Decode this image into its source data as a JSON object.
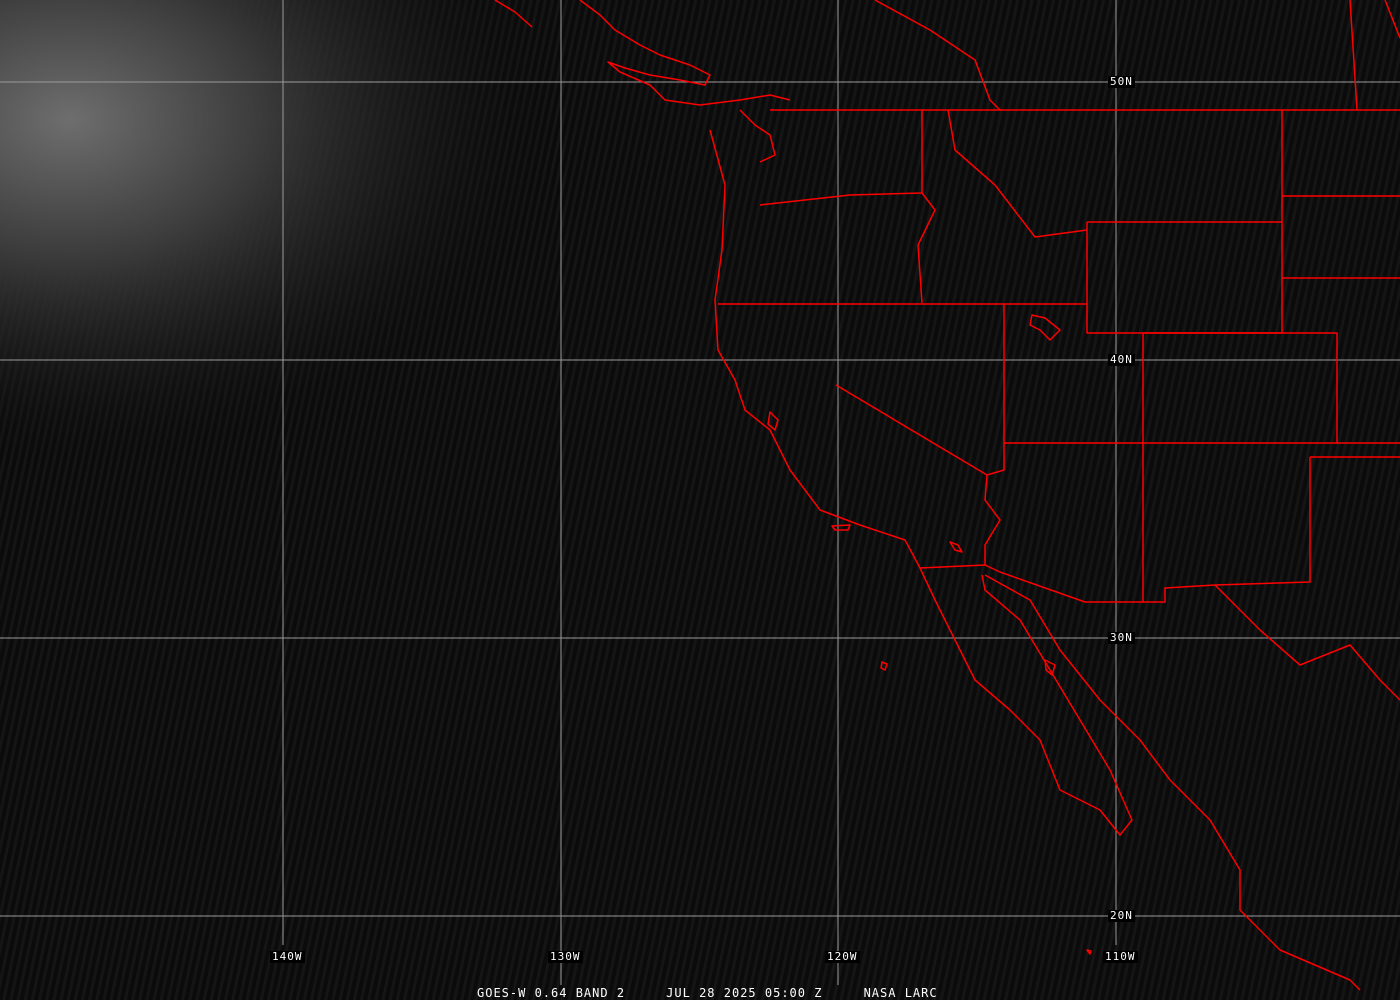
{
  "image": {
    "satellite": "GOES-W",
    "caption_left": "GOES-W 0.64 BAND 2",
    "caption_time": "JUL 28 2025 05:00 Z",
    "caption_right": "NASA LARC"
  },
  "grid": {
    "longitude_labels": [
      "140W",
      "130W",
      "120W",
      "110W"
    ],
    "latitude_labels": [
      "50N",
      "40N",
      "30N",
      "20N"
    ],
    "color": "#9a9a9a"
  },
  "overlay": {
    "boundary_color": "#ff0000",
    "features": [
      "coastlines",
      "state-borders",
      "international-borders"
    ]
  },
  "background": {
    "cloud_region": "upper-left",
    "cloud_color": "#8a8a8a"
  }
}
